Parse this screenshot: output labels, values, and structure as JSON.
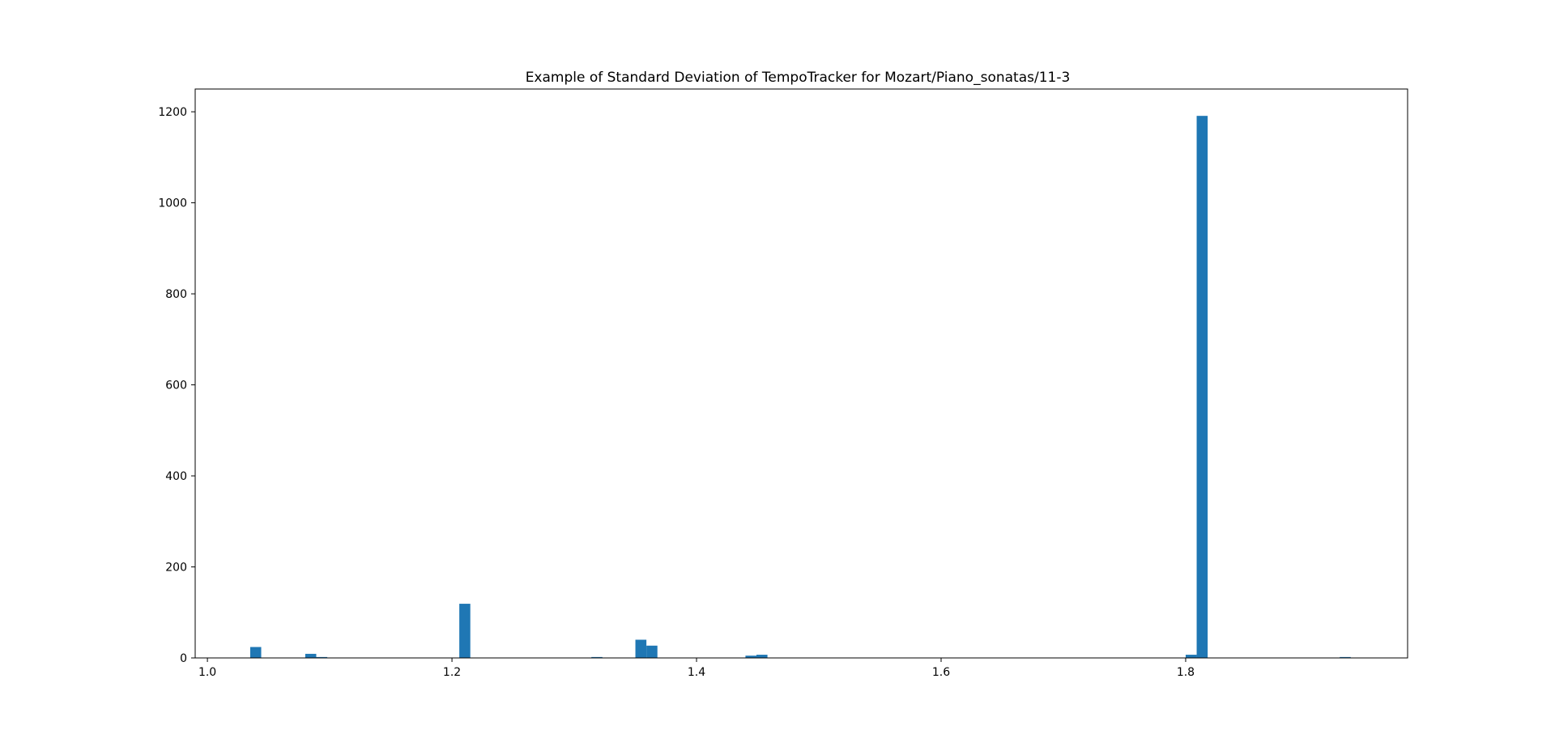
{
  "chart_data": {
    "type": "bar",
    "title": "Example of Standard Deviation of TempoTracker for Mozart/Piano_sonatas/11-3",
    "xlabel": "",
    "ylabel": "",
    "xlim": [
      0.99,
      1.9815
    ],
    "ylim": [
      0,
      1250
    ],
    "x_ticks": [
      1.0,
      1.2,
      1.4,
      1.6,
      1.8
    ],
    "x_tick_labels": [
      "1.0",
      "1.2",
      "1.4",
      "1.6",
      "1.8"
    ],
    "y_ticks": [
      0,
      200,
      400,
      600,
      800,
      1000,
      1200
    ],
    "y_tick_labels": [
      "0",
      "200",
      "400",
      "600",
      "800",
      "1000",
      "1200"
    ],
    "bin_width": 0.009,
    "bins": [
      {
        "x0": 1.035,
        "count": 24
      },
      {
        "x0": 1.08,
        "count": 9
      },
      {
        "x0": 1.089,
        "count": 2
      },
      {
        "x0": 1.206,
        "count": 119
      },
      {
        "x0": 1.314,
        "count": 2
      },
      {
        "x0": 1.35,
        "count": 40
      },
      {
        "x0": 1.359,
        "count": 27
      },
      {
        "x0": 1.44,
        "count": 5
      },
      {
        "x0": 1.449,
        "count": 7
      },
      {
        "x0": 1.8,
        "count": 7
      },
      {
        "x0": 1.809,
        "count": 1191
      },
      {
        "x0": 1.926,
        "count": 2
      }
    ],
    "bar_color": "#1f77b4",
    "grid": false,
    "legend": "none"
  }
}
